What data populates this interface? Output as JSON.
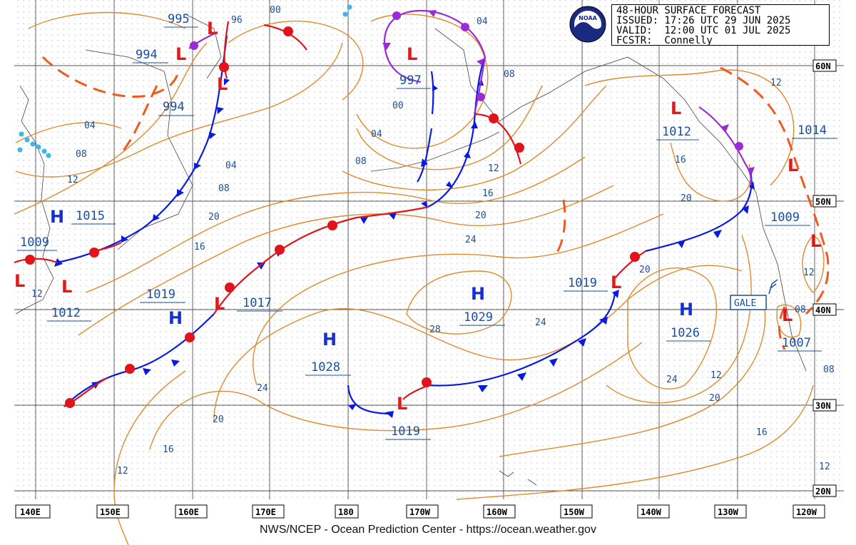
{
  "header": {
    "title": "48-HOUR SURFACE FORECAST",
    "issued": "ISSUED: 17:26 UTC 29 JUN 2025",
    "valid": "VALID:  12:00 UTC 01 JUL 2025",
    "forecaster": "FCSTR:  Connelly",
    "logo_text": "NOAA"
  },
  "footer": "NWS/NCEP - Ocean Prediction Center - https://ocean.weather.gov",
  "longitude_labels": [
    "140E",
    "150E",
    "160E",
    "170E",
    "180",
    "170W",
    "160W",
    "150W",
    "140W",
    "130W",
    "120W"
  ],
  "latitude_labels": [
    "60N",
    "50N",
    "40N",
    "30N",
    "20N"
  ],
  "pressure_centers": [
    {
      "type": "L",
      "value": "995"
    },
    {
      "type": "L",
      "value": "994"
    },
    {
      "type": "L",
      "value": "994"
    },
    {
      "type": "L",
      "value": "997"
    },
    {
      "type": "L",
      "value": "1012"
    },
    {
      "type": "H",
      "value": "1015"
    },
    {
      "type": "L",
      "value": "1009"
    },
    {
      "type": "L",
      "value": "1012"
    },
    {
      "type": "H",
      "value": "1019"
    },
    {
      "type": "L",
      "value": "1017"
    },
    {
      "type": "H",
      "value": "1028"
    },
    {
      "type": "H",
      "value": "1029"
    },
    {
      "type": "L",
      "value": "1019"
    },
    {
      "type": "L",
      "value": "1019"
    },
    {
      "type": "H",
      "value": "1026"
    },
    {
      "type": "L",
      "value": "1009"
    },
    {
      "type": "L",
      "value": "1007"
    },
    {
      "type": "L",
      "value": "1014"
    }
  ],
  "warnings": [
    "GALE"
  ],
  "isobar_labels": [
    "96",
    "00",
    "04",
    "08",
    "00",
    "04",
    "08",
    "12",
    "16",
    "20",
    "24",
    "28",
    "24",
    "20",
    "16",
    "12",
    "08",
    "04",
    "12",
    "16",
    "20",
    "24",
    "20",
    "16",
    "12",
    "12",
    "08",
    "04",
    "12",
    "08",
    "24",
    "20",
    "16",
    "12",
    "12",
    "08",
    "20",
    "24",
    "16",
    "08",
    "12"
  ],
  "colors": {
    "isobar": "#e08a2c",
    "cold_front": "#0a1adf",
    "warm_front": "#e0141a",
    "occluded_front": "#9b2bd6",
    "trough": "#f05a1e",
    "high": "#1530d0",
    "low": "#e01a1a",
    "label_text": "#1a4fa0"
  }
}
